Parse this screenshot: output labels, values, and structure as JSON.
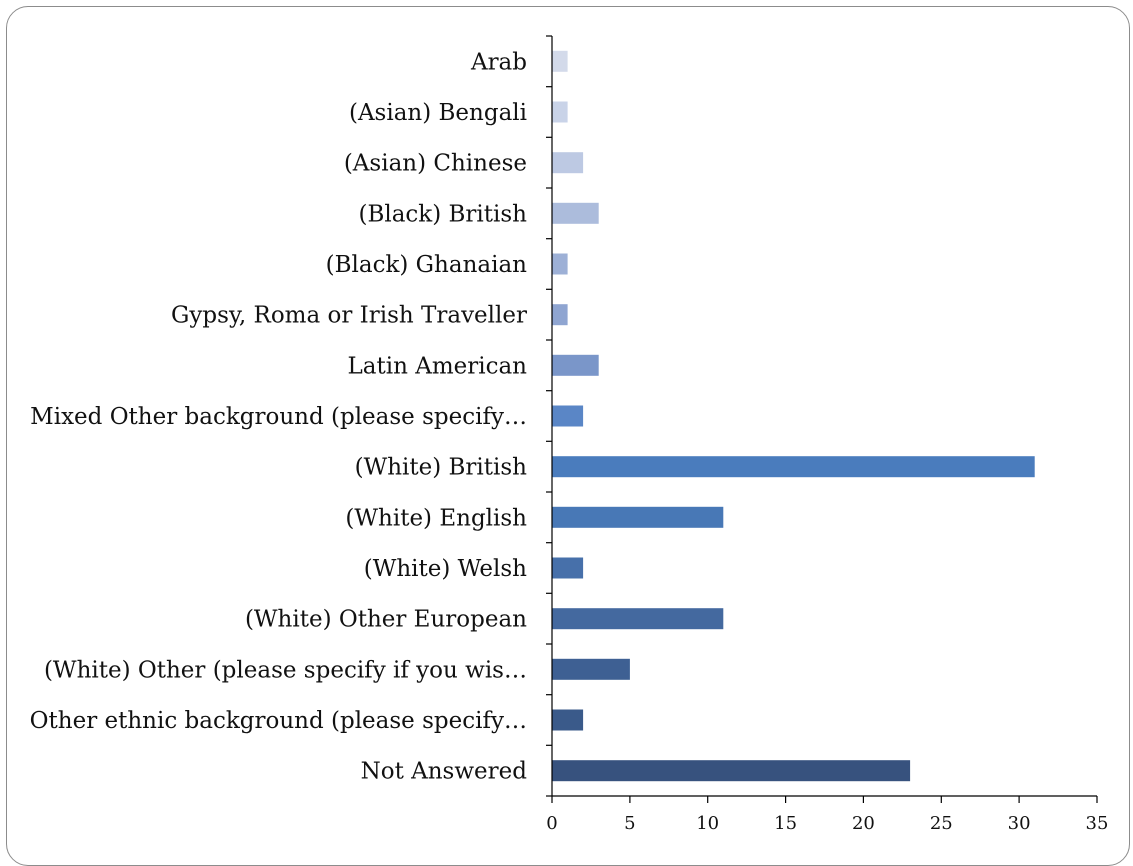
{
  "chart_data": {
    "type": "bar",
    "orientation": "horizontal",
    "categories": [
      "Arab",
      "(Asian) Bengali",
      "(Asian) Chinese",
      "(Black) British",
      "(Black) Ghanaian",
      "Gypsy, Roma or Irish Traveller",
      "Latin American",
      "Mixed Other background (please specify…",
      "(White) British",
      "(White) English",
      "(White) Welsh",
      "(White) Other European",
      "(White) Other (please specify if you wis…",
      "Other ethnic background (please specify…",
      "Not Answered"
    ],
    "values": [
      1,
      1,
      2,
      3,
      1,
      1,
      3,
      2,
      31,
      11,
      2,
      11,
      5,
      2,
      23
    ],
    "bar_colors": [
      "#d3daea",
      "#c9d3e8",
      "#bdc9e3",
      "#acbcdc",
      "#9db0d6",
      "#8fa5d1",
      "#7a96c9",
      "#5a86c6",
      "#4a7cbd",
      "#4878b6",
      "#4770aa",
      "#44699f",
      "#3e6093",
      "#3a5a8a",
      "#37527e"
    ],
    "xlim": [
      0,
      35
    ],
    "xticks": [
      "0",
      "5",
      "10",
      "15",
      "20",
      "25",
      "30",
      "35"
    ],
    "title": "",
    "xlabel": "",
    "ylabel": "",
    "grid": false,
    "legend": "none"
  }
}
